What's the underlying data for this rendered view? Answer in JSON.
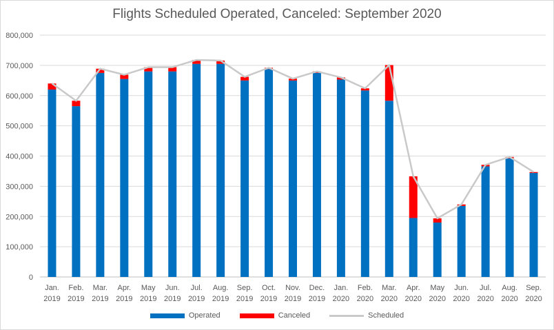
{
  "chart_data": {
    "type": "bar",
    "title": "Flights Scheduled Operated, Canceled: September 2020",
    "xlabel": "",
    "ylabel": "",
    "ylim": [
      0,
      800000
    ],
    "yticks": [
      "0",
      "100,000",
      "200,000",
      "300,000",
      "400,000",
      "500,000",
      "600,000",
      "700,000",
      "800,000"
    ],
    "categories": [
      [
        "Jan.",
        "2019"
      ],
      [
        "Feb.",
        "2019"
      ],
      [
        "Mar.",
        "2019"
      ],
      [
        "Apr.",
        "2019"
      ],
      [
        "May",
        "2019"
      ],
      [
        "Jun.",
        "2019"
      ],
      [
        "Jul.",
        "2019"
      ],
      [
        "Aug.",
        "2019"
      ],
      [
        "Sep.",
        "2019"
      ],
      [
        "Oct.",
        "2019"
      ],
      [
        "Nov.",
        "2019"
      ],
      [
        "Dec.",
        "2019"
      ],
      [
        "Jan.",
        "2020"
      ],
      [
        "Feb.",
        "2020"
      ],
      [
        "Mar.",
        "2020"
      ],
      [
        "Apr.",
        "2020"
      ],
      [
        "May",
        "2020"
      ],
      [
        "Jun.",
        "2020"
      ],
      [
        "Jul.",
        "2020"
      ],
      [
        "Aug.",
        "2020"
      ],
      [
        "Sep.",
        "2020"
      ]
    ],
    "stacked": true,
    "grid": true,
    "legend": "bottom",
    "series": [
      {
        "name": "Operated",
        "kind": "bar",
        "color": "#0070c0",
        "values": [
          620000,
          565000,
          675000,
          655000,
          680000,
          680000,
          705000,
          705000,
          650000,
          688000,
          650000,
          675000,
          653000,
          617000,
          583000,
          195000,
          180000,
          235000,
          366000,
          392000,
          344000
        ]
      },
      {
        "name": "Canceled",
        "kind": "bar",
        "color": "#ff0000",
        "values": [
          20000,
          18000,
          14000,
          14000,
          14000,
          14000,
          13000,
          11000,
          12000,
          4000,
          6000,
          5000,
          7000,
          7000,
          118000,
          138000,
          14000,
          5000,
          5000,
          5000,
          3000
        ]
      },
      {
        "name": "Scheduled",
        "kind": "line",
        "color": "#c9c9c9",
        "values": [
          640000,
          583000,
          689000,
          669000,
          694000,
          694000,
          718000,
          716000,
          662000,
          692000,
          656000,
          680000,
          660000,
          624000,
          701000,
          333000,
          194000,
          240000,
          371000,
          397000,
          347000
        ]
      }
    ]
  }
}
